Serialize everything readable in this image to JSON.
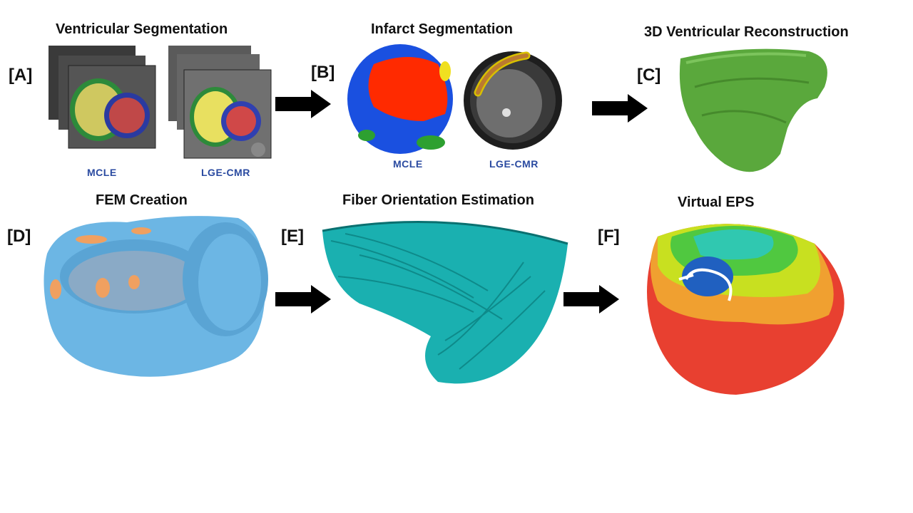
{
  "titles": {
    "a": "Ventricular Segmentation",
    "b": "Infarct Segmentation",
    "c": "3D Ventricular Reconstruction",
    "d": "FEM Creation",
    "e": "Fiber Orientation Estimation",
    "f": "Virtual EPS"
  },
  "labels": {
    "a": "[A]",
    "b": "[B]",
    "c": "[C]",
    "d": "[D]",
    "e": "[E]",
    "f": "[F]"
  },
  "captions": {
    "a_left": "MCLE",
    "a_right": "LGE-CMR",
    "b_left": "MCLE",
    "b_right": "LGE-CMR"
  },
  "colors": {
    "arrow": "#000000",
    "caption": "#2a4aa0",
    "lv_blood": "#cc4444",
    "rv_blood": "#d8d050",
    "myocardium_ring": "#3344aa",
    "infarct_map_red": "#ff2a00",
    "infarct_map_blue": "#1a50e0",
    "reconstruction_green": "#5aa83c",
    "fem_blue": "#6cb6e4",
    "fem_orange": "#f0a060",
    "fiber_teal": "#1ab0b0"
  },
  "icons": [
    "right-arrow-icon"
  ]
}
